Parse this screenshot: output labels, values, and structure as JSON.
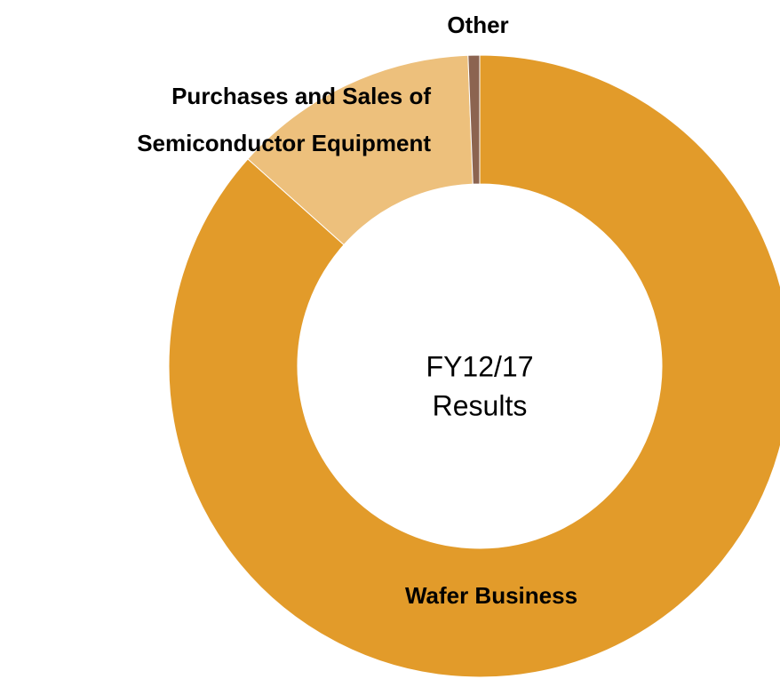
{
  "chart_data": {
    "type": "donut",
    "categories": [
      "Wafer Business",
      "Purchases and Sales of Semiconductor Equipment",
      "Other"
    ],
    "label_lines": [
      [
        "Wafer Business"
      ],
      [
        "Purchases and Sales of",
        "Semiconductor Equipment"
      ],
      [
        "Other"
      ]
    ],
    "values": [
      86.6,
      12.8,
      0.6
    ],
    "colors": [
      "#e29b2a",
      "#edc07c",
      "#8c6450"
    ],
    "center_label": [
      "FY12/17",
      "Results"
    ]
  }
}
